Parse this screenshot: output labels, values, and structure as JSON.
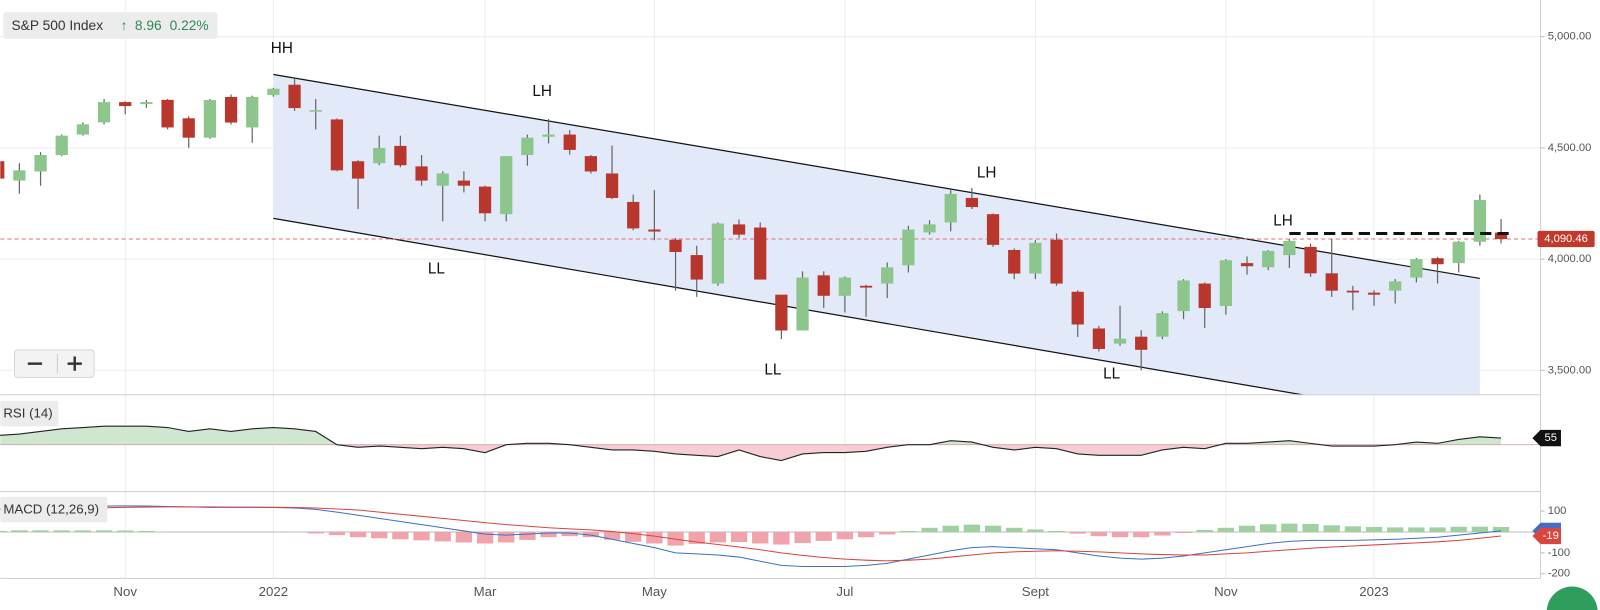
{
  "chart_data": [
    {
      "type": "candlestick",
      "title": "S&P 500 Index",
      "change": "8.96",
      "change_percent": "0.22%",
      "categories": [
        null,
        null,
        null,
        null,
        null,
        null,
        "Nov",
        null,
        null,
        null,
        null,
        null,
        null,
        "2022",
        null,
        null,
        null,
        null,
        null,
        null,
        null,
        null,
        null,
        "Mar",
        null,
        null,
        null,
        null,
        null,
        null,
        null,
        "May",
        null,
        null,
        null,
        null,
        null,
        null,
        null,
        null,
        "Jul",
        null,
        null,
        null,
        null,
        null,
        null,
        null,
        null,
        "Sept",
        null,
        null,
        null,
        null,
        null,
        null,
        null,
        null,
        "Nov",
        null,
        null,
        null,
        null,
        null,
        null,
        "2023",
        null,
        null,
        null,
        null,
        null,
        null
      ],
      "open": [
        4440,
        4353,
        4394,
        4468,
        4560,
        4615,
        4706,
        4697,
        4716,
        4633,
        4546,
        4729,
        4592,
        4738,
        4784,
        4665,
        4628,
        4440,
        4431,
        4509,
        4417,
        4330,
        4353,
        4326,
        4202,
        4468,
        4550,
        4560,
        4463,
        4385,
        4257,
        4133,
        4087,
        4018,
        3890,
        4156,
        4142,
        3840,
        3679,
        3927,
        3835,
        3880,
        3890,
        3972,
        4120,
        4165,
        4275,
        4202,
        4041,
        3935,
        4087,
        3853,
        3688,
        3620,
        3651,
        3651,
        3766,
        3890,
        3789,
        3982,
        3963,
        4018,
        4055,
        3936,
        3858,
        3849,
        3858,
        3917,
        4004,
        3982,
        4078,
        4119
      ],
      "high": [
        4454,
        4431,
        4481,
        4560,
        4615,
        4720,
        4710,
        4715,
        4720,
        4642,
        4720,
        4740,
        4735,
        4770,
        4818,
        4720,
        4632,
        4445,
        4555,
        4555,
        4468,
        4395,
        4395,
        4330,
        4463,
        4560,
        4630,
        4580,
        4468,
        4510,
        4290,
        4310,
        4095,
        4060,
        4165,
        4178,
        4165,
        3840,
        3945,
        3945,
        3922,
        3885,
        3985,
        4150,
        4175,
        4310,
        4320,
        4205,
        4048,
        4085,
        4115,
        3860,
        3700,
        3790,
        3680,
        3765,
        3910,
        3895,
        4000,
        4012,
        4040,
        4090,
        4070,
        4092,
        3880,
        3860,
        3910,
        4005,
        4010,
        4082,
        4290,
        4180
      ],
      "low": [
        4348,
        4294,
        4330,
        4463,
        4555,
        4606,
        4651,
        4680,
        4583,
        4500,
        4541,
        4605,
        4523,
        4730,
        4666,
        4583,
        4395,
        4225,
        4422,
        4413,
        4330,
        4170,
        4300,
        4170,
        4170,
        4420,
        4520,
        4470,
        4385,
        4270,
        4130,
        4085,
        3858,
        3830,
        3880,
        4095,
        3908,
        3640,
        3679,
        3780,
        3760,
        3740,
        3825,
        3940,
        4110,
        4125,
        4225,
        4055,
        3910,
        3910,
        3880,
        3650,
        3585,
        3610,
        3500,
        3640,
        3730,
        3690,
        3750,
        3930,
        3950,
        3960,
        3920,
        3830,
        3770,
        3790,
        3800,
        3895,
        3890,
        3940,
        4060,
        4070
      ],
      "close": [
        4362,
        4399,
        4468,
        4555,
        4606,
        4706,
        4688,
        4706,
        4592,
        4546,
        4715,
        4614,
        4729,
        4766,
        4679,
        4670,
        4399,
        4362,
        4500,
        4422,
        4353,
        4385,
        4330,
        4206,
        4463,
        4546,
        4560,
        4491,
        4394,
        4275,
        4138,
        4124,
        4032,
        3908,
        4160,
        4110,
        3908,
        3679,
        3917,
        3835,
        3917,
        3872,
        3963,
        4133,
        4156,
        4293,
        4234,
        4064,
        3935,
        4073,
        3890,
        3706,
        3596,
        3642,
        3592,
        3757,
        3904,
        3780,
        3995,
        3968,
        4037,
        4082,
        3936,
        3858,
        3850,
        3840,
        3900,
        4000,
        3977,
        4078,
        4266,
        4090.46
      ],
      "up_color": "#8cc68c",
      "down_color": "#b8362b",
      "ylim": [
        3390,
        5165
      ],
      "yticks": [
        {
          "value": 3500,
          "label": "3,500.00"
        },
        {
          "value": 4000,
          "label": "4,000.00"
        },
        {
          "value": 4500,
          "label": "4,500.00"
        },
        {
          "value": 5000,
          "label": "5,000.00"
        }
      ],
      "grid": true,
      "last_price": {
        "value": 4090.46,
        "label": "4,090.46"
      },
      "channel": {
        "upper": {
          "x": [
            13,
            70
          ],
          "y": [
            4830,
            3913
          ]
        },
        "lower": {
          "x": [
            13,
            70
          ],
          "y": [
            4183,
            3253
          ]
        },
        "color": "#e2e9f9"
      },
      "resistance": {
        "x": [
          61,
          71.5
        ],
        "y": [
          4115,
          4115
        ]
      },
      "annotations": [
        {
          "text": "HH",
          "x": 13.4,
          "y": 4945
        },
        {
          "text": "LH",
          "x": 25.7,
          "y": 4752
        },
        {
          "text": "LH",
          "x": 46.7,
          "y": 4385
        },
        {
          "text": "LH",
          "x": 60.7,
          "y": 4170
        },
        {
          "text": "LL",
          "x": 20.7,
          "y": 3954
        },
        {
          "text": "LL",
          "x": 36.6,
          "y": 3500
        },
        {
          "text": "LL",
          "x": 52.6,
          "y": 3482
        }
      ]
    },
    {
      "type": "line",
      "title": "RSI (14)",
      "values": [
        57,
        58,
        60,
        62,
        63,
        64,
        64,
        64,
        63,
        60,
        62,
        60,
        62,
        63,
        62,
        60,
        50,
        48,
        49,
        48,
        47,
        48,
        47,
        44,
        50,
        51,
        51,
        50,
        48,
        46,
        46,
        45,
        43,
        42,
        41,
        46,
        41,
        38,
        43,
        44,
        44,
        45,
        48,
        50,
        50,
        53,
        52,
        48,
        46,
        48,
        47,
        43,
        42,
        42,
        42,
        46,
        48,
        47,
        51,
        51,
        52,
        53,
        51,
        49,
        49,
        49,
        50,
        52,
        51,
        54,
        56,
        55
      ],
      "baseline": 50,
      "ylim": [
        16,
        87
      ],
      "color": "#222222",
      "above_color": "#cfe7cf",
      "below_color": "#f5cdd3"
    },
    {
      "type": "macd",
      "title": "MACD (12,26,9)",
      "macd": [
        110,
        115,
        118,
        120,
        122,
        124,
        125,
        124,
        122,
        120,
        118,
        118,
        118,
        117,
        115,
        108,
        95,
        80,
        65,
        50,
        35,
        20,
        5,
        -10,
        -15,
        -10,
        -5,
        -5,
        -15,
        -35,
        -55,
        -75,
        -100,
        -105,
        -110,
        -120,
        -140,
        -160,
        -165,
        -165,
        -165,
        -160,
        -150,
        -130,
        -110,
        -90,
        -75,
        -70,
        -75,
        -80,
        -85,
        -100,
        -115,
        -125,
        -130,
        -125,
        -115,
        -100,
        -85,
        -70,
        -55,
        -45,
        -40,
        -40,
        -40,
        -38,
        -35,
        -30,
        -25,
        -15,
        -5,
        5
      ],
      "signal": [
        105,
        107,
        110,
        112,
        114,
        116,
        118,
        119,
        120,
        120,
        120,
        119,
        119,
        118,
        117,
        115,
        110,
        105,
        95,
        85,
        75,
        65,
        55,
        45,
        35,
        28,
        20,
        15,
        10,
        2,
        -8,
        -20,
        -35,
        -48,
        -60,
        -72,
        -85,
        -100,
        -112,
        -122,
        -130,
        -135,
        -138,
        -135,
        -130,
        -120,
        -110,
        -100,
        -95,
        -92,
        -90,
        -92,
        -95,
        -100,
        -105,
        -108,
        -110,
        -110,
        -105,
        -100,
        -92,
        -85,
        -78,
        -72,
        -67,
        -62,
        -57,
        -52,
        -47,
        -40,
        -30,
        -19
      ],
      "histogram": [
        5,
        8,
        8,
        8,
        8,
        8,
        7,
        5,
        2,
        0,
        -2,
        -1,
        -1,
        -1,
        -2,
        -7,
        -15,
        -25,
        -30,
        -35,
        -40,
        -45,
        -50,
        -55,
        -50,
        -38,
        -25,
        -20,
        -25,
        -37,
        -47,
        -55,
        -65,
        -57,
        -50,
        -48,
        -55,
        -60,
        -53,
        -43,
        -35,
        -25,
        -12,
        5,
        20,
        30,
        35,
        30,
        20,
        12,
        5,
        -8,
        -20,
        -25,
        -25,
        -17,
        -5,
        10,
        20,
        30,
        37,
        40,
        38,
        32,
        27,
        24,
        22,
        22,
        22,
        25,
        25,
        24
      ],
      "macd_color": "#3d6fc8",
      "signal_color": "#d9453f",
      "hist_up_color": "#9fd09f",
      "hist_down_color": "#f0a3ab",
      "ylim": [
        -222,
        188
      ],
      "yticks": [
        100,
        -100,
        -200
      ]
    }
  ]
}
